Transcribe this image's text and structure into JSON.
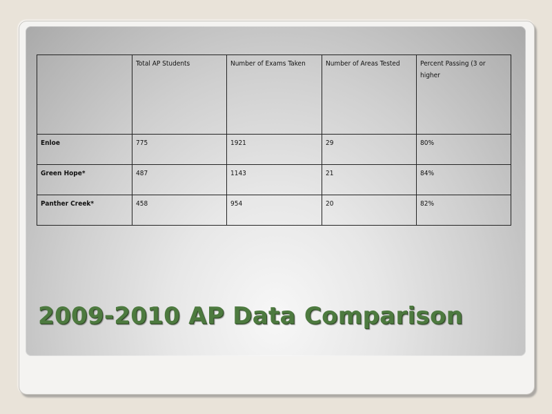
{
  "slide": {
    "title": "2009-2010 AP Data Comparison"
  },
  "table": {
    "headers": [
      "",
      "Total AP Students",
      "Number of Exams Taken",
      "Number of Areas Tested",
      "Percent Passing (3 or higher"
    ],
    "rows": [
      [
        "Enloe",
        "775",
        "1921",
        "29",
        "80%"
      ],
      [
        "Green Hope*",
        "487",
        "1143",
        "21",
        "84%"
      ],
      [
        "Panther Creek*",
        "458",
        "954",
        "20",
        "82%"
      ]
    ]
  },
  "colors": {
    "title": "#4d7a3f",
    "background": "#e9e3d9",
    "border": "#222222"
  }
}
